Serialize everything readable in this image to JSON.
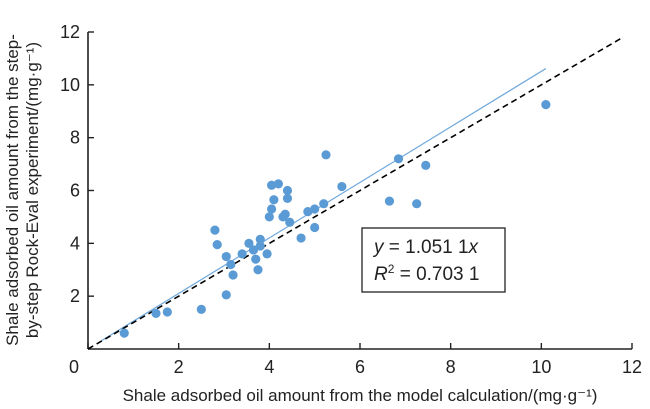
{
  "chart_data": {
    "type": "scatter",
    "title": "",
    "xlabel": "Shale adsorbed oil amount from the model calculation/(mg·g⁻¹)",
    "ylabel_line1": "Shale adsorbed oil amount from the step-",
    "ylabel_line2": "by-step Rock-Eval experiment/(mg·g⁻¹)",
    "xlim": [
      0,
      12
    ],
    "ylim": [
      0,
      12
    ],
    "xticks": [
      0,
      2,
      4,
      6,
      8,
      10,
      12
    ],
    "yticks": [
      2,
      4,
      6,
      8,
      10,
      12
    ],
    "grid": false,
    "colors": {
      "points": "#5b9bd5",
      "fit_line": "#6fa8dc",
      "reference_line": "#000000"
    },
    "fit_line": {
      "slope": 1.0511,
      "x_range": [
        0.3,
        10.1
      ]
    },
    "reference_line": {
      "slope": 1.0,
      "x_range": [
        0.0,
        11.8
      ]
    },
    "annotation": {
      "eq_prefix": "y",
      "eq_rest": " = 1.051 1",
      "eq_var": "x",
      "r_prefix": "R",
      "r_sup": "2",
      "r_rest": " = 0.703 1"
    },
    "points": [
      [
        0.8,
        0.6
      ],
      [
        1.5,
        1.35
      ],
      [
        1.75,
        1.4
      ],
      [
        2.5,
        1.5
      ],
      [
        3.05,
        2.05
      ],
      [
        2.8,
        4.5
      ],
      [
        2.85,
        3.95
      ],
      [
        3.05,
        3.5
      ],
      [
        3.2,
        2.8
      ],
      [
        3.15,
        3.2
      ],
      [
        3.4,
        3.6
      ],
      [
        3.55,
        4.0
      ],
      [
        3.65,
        3.75
      ],
      [
        3.7,
        3.4
      ],
      [
        3.75,
        3.0
      ],
      [
        3.8,
        3.9
      ],
      [
        3.8,
        4.15
      ],
      [
        3.95,
        3.6
      ],
      [
        4.0,
        5.0
      ],
      [
        4.05,
        5.3
      ],
      [
        4.1,
        5.65
      ],
      [
        4.05,
        6.2
      ],
      [
        4.2,
        6.25
      ],
      [
        4.3,
        5.0
      ],
      [
        4.35,
        5.1
      ],
      [
        4.4,
        6.0
      ],
      [
        4.4,
        5.7
      ],
      [
        4.45,
        4.8
      ],
      [
        4.7,
        4.2
      ],
      [
        4.85,
        5.2
      ],
      [
        5.0,
        5.3
      ],
      [
        5.0,
        4.6
      ],
      [
        5.2,
        5.5
      ],
      [
        5.25,
        7.35
      ],
      [
        5.6,
        6.15
      ],
      [
        6.65,
        5.6
      ],
      [
        6.85,
        7.2
      ],
      [
        7.25,
        5.5
      ],
      [
        7.45,
        6.95
      ],
      [
        10.1,
        9.25
      ]
    ]
  }
}
